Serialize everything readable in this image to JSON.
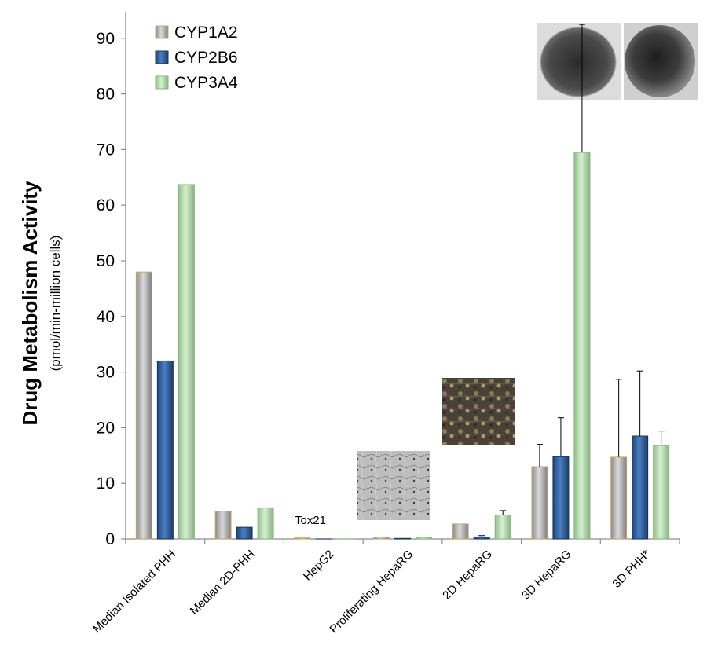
{
  "chart_data": {
    "type": "bar",
    "title": "",
    "ylabel": "Drug Metabolism Activity",
    "ylabel_sub": "(pmol/min-million cells)",
    "ylim": [
      0,
      95
    ],
    "yticks": [
      0,
      10,
      20,
      30,
      40,
      50,
      60,
      70,
      80,
      90
    ],
    "categories": [
      "Median Isolated PHH",
      "Median 2D-PHH",
      "HepG2",
      "Proliferating HepaRG",
      "2D HepaRG",
      "3D HepaRG",
      "3D PHH*"
    ],
    "series": [
      {
        "name": "CYP1A2",
        "color": "#a6a6a6",
        "values": [
          48,
          5,
          0.2,
          0.3,
          2.7,
          13,
          14.7
        ],
        "errors": [
          0,
          0,
          0,
          0,
          0,
          4,
          14
        ]
      },
      {
        "name": "CYP2B6",
        "color": "#2e5f9e",
        "values": [
          32,
          2.1,
          0,
          0.1,
          0.3,
          14.8,
          18.5
        ],
        "errors": [
          0,
          0,
          0,
          0,
          0.3,
          7,
          11.7
        ]
      },
      {
        "name": "CYP3A4",
        "color": "#b6dbb0",
        "values": [
          63.7,
          5.6,
          0,
          0.3,
          4.3,
          69.5,
          16.8
        ],
        "errors": [
          0,
          0,
          0,
          0,
          0.8,
          23,
          2.6
        ]
      }
    ],
    "annotations": [
      "Tox21"
    ],
    "legend_position": "top-left",
    "grid": false
  }
}
